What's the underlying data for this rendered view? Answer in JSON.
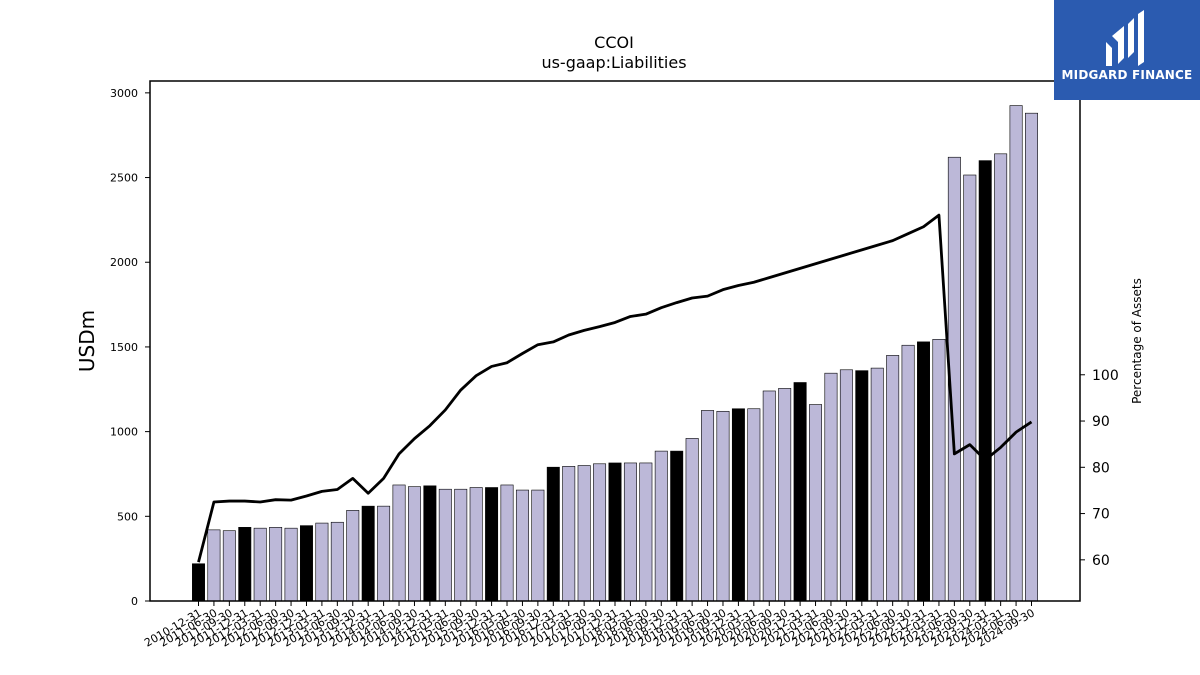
{
  "brand": {
    "name": "MIDGARD FINANCE",
    "bg_color": "#2b5bb0"
  },
  "chart_data": {
    "type": "bar",
    "title": "CCOI",
    "subtitle": "us-gaap:Liabilities",
    "ylabel": "USDm",
    "y2label": "Percentage of Assets",
    "ylim": [
      0,
      3070
    ],
    "y2lim": [
      51.1,
      163.5
    ],
    "yticks": [
      0,
      500,
      1000,
      1500,
      2000,
      2500,
      3000
    ],
    "y2ticks": [
      60,
      70,
      80,
      90,
      100
    ],
    "colors": {
      "annual": "#000000",
      "quarterly": "#bcb8d8",
      "line": "#000000"
    },
    "categories": [
      "2010-12-31",
      "2011-06-30",
      "2011-09-30",
      "2011-12-31",
      "2012-03-31",
      "2012-06-30",
      "2012-09-30",
      "2012-12-31",
      "2013-03-31",
      "2013-06-30",
      "2013-09-30",
      "2013-12-31",
      "2014-03-31",
      "2014-06-30",
      "2014-09-30",
      "2014-12-31",
      "2015-03-31",
      "2015-06-30",
      "2015-09-30",
      "2015-12-31",
      "2016-03-31",
      "2016-06-30",
      "2016-09-30",
      "2016-12-31",
      "2017-03-31",
      "2017-06-30",
      "2017-09-30",
      "2017-12-31",
      "2018-03-31",
      "2018-06-30",
      "2018-09-30",
      "2018-12-31",
      "2019-03-31",
      "2019-06-30",
      "2019-09-30",
      "2019-12-31",
      "2020-03-31",
      "2020-06-30",
      "2020-09-30",
      "2020-12-31",
      "2021-03-31",
      "2021-06-30",
      "2021-09-30",
      "2021-12-31",
      "2022-03-31",
      "2022-06-30",
      "2022-09-30",
      "2022-12-31",
      "2023-03-31",
      "2023-06-30",
      "2023-09-30",
      "2023-12-31",
      "2024-03-31",
      "2024-06-30",
      "2024-09-30"
    ],
    "series": [
      {
        "values": [
          220,
          420,
          415,
          435,
          430,
          435,
          430,
          445,
          460,
          465,
          535,
          560,
          560,
          685,
          675,
          680,
          660,
          660,
          670,
          670,
          685,
          655,
          655,
          790,
          795,
          800,
          810,
          815,
          815,
          815,
          885,
          885,
          960,
          1125,
          1120,
          1135,
          1135,
          1240,
          1255,
          1290,
          1160,
          1345,
          1365,
          1360,
          1375,
          1450,
          1510,
          1530,
          1545,
          2620,
          2515,
          2600,
          2640,
          2925,
          2880
        ]
      },
      {
        "axis": "secondary",
        "values": [
          59.5,
          72.5,
          72.7,
          72.7,
          72.5,
          73.0,
          72.9,
          73.8,
          74.8,
          75.2,
          77.6,
          74.4,
          77.6,
          82.9,
          86.2,
          89.0,
          92.4,
          96.7,
          99.8,
          101.8,
          102.6,
          104.6,
          106.5,
          107.1,
          108.6,
          109.6,
          110.4,
          111.3,
          112.6,
          113.1,
          114.5,
          115.6,
          116.6,
          117.0,
          118.4,
          119.3,
          120.0,
          121.0,
          122.0,
          123.0,
          124.0,
          125.0,
          126.0,
          127.0,
          128.0,
          129.0,
          130.5,
          132.0,
          134.5,
          82.9,
          84.9,
          81.6,
          84.3,
          87.6,
          89.8
        ]
      }
    ],
    "annual_flags": [
      1,
      0,
      0,
      1,
      0,
      0,
      0,
      1,
      0,
      0,
      0,
      1,
      0,
      0,
      0,
      1,
      0,
      0,
      0,
      1,
      0,
      0,
      0,
      1,
      0,
      0,
      0,
      1,
      0,
      0,
      0,
      1,
      0,
      0,
      0,
      1,
      0,
      0,
      0,
      1,
      0,
      0,
      0,
      1,
      0,
      0,
      0,
      1,
      0,
      0,
      0,
      1,
      0,
      0,
      0
    ]
  }
}
